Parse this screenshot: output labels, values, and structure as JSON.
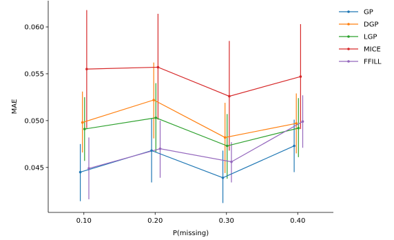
{
  "chart_data": {
    "type": "line",
    "xlabel": "P(missing)",
    "ylabel": "MAE",
    "x_ticks": [
      "0.10",
      "0.20",
      "0.30",
      "0.40"
    ],
    "y_ticks": [
      "0.045",
      "0.050",
      "0.055",
      "0.060"
    ],
    "xlim": [
      0.05,
      0.45
    ],
    "ylim": [
      0.0402,
      0.0628
    ],
    "grid": false,
    "legend_position": "upper right, outside plot",
    "series": [
      {
        "name": "GP",
        "color": "#1f77b4",
        "x": [
          0.095,
          0.195,
          0.295,
          0.395
        ],
        "y": [
          0.0445,
          0.0468,
          0.0439,
          0.0473
        ],
        "err_low": [
          0.0414,
          0.0434,
          0.0412,
          0.0445
        ],
        "err_high": [
          0.0475,
          0.0502,
          0.0468,
          0.0501
        ]
      },
      {
        "name": "DGP",
        "color": "#ff7f0e",
        "x": [
          0.098,
          0.198,
          0.298,
          0.398
        ],
        "y": [
          0.0498,
          0.0522,
          0.0482,
          0.0497
        ],
        "err_low": [
          0.0466,
          0.0481,
          0.0444,
          0.0465
        ],
        "err_high": [
          0.0531,
          0.0562,
          0.0519,
          0.0529
        ]
      },
      {
        "name": "LGP",
        "color": "#2ca02c",
        "x": [
          0.101,
          0.201,
          0.301,
          0.401
        ],
        "y": [
          0.0491,
          0.0503,
          0.0473,
          0.0492
        ],
        "err_low": [
          0.0457,
          0.0466,
          0.0438,
          0.0461
        ],
        "err_high": [
          0.0525,
          0.054,
          0.0507,
          0.0524
        ]
      },
      {
        "name": "MICE",
        "color": "#d62728",
        "x": [
          0.104,
          0.204,
          0.304,
          0.404
        ],
        "y": [
          0.0555,
          0.0557,
          0.0526,
          0.0547
        ],
        "err_low": [
          0.0492,
          0.0501,
          0.0468,
          0.0491
        ],
        "err_high": [
          0.0618,
          0.0614,
          0.0585,
          0.0603
        ]
      },
      {
        "name": "FFILL",
        "color": "#9467bd",
        "x": [
          0.107,
          0.207,
          0.307,
          0.407
        ],
        "y": [
          0.0449,
          0.047,
          0.0456,
          0.0499
        ],
        "err_low": [
          0.0416,
          0.0439,
          0.0434,
          0.0471
        ],
        "err_high": [
          0.0482,
          0.05,
          0.0477,
          0.0527
        ]
      }
    ]
  }
}
